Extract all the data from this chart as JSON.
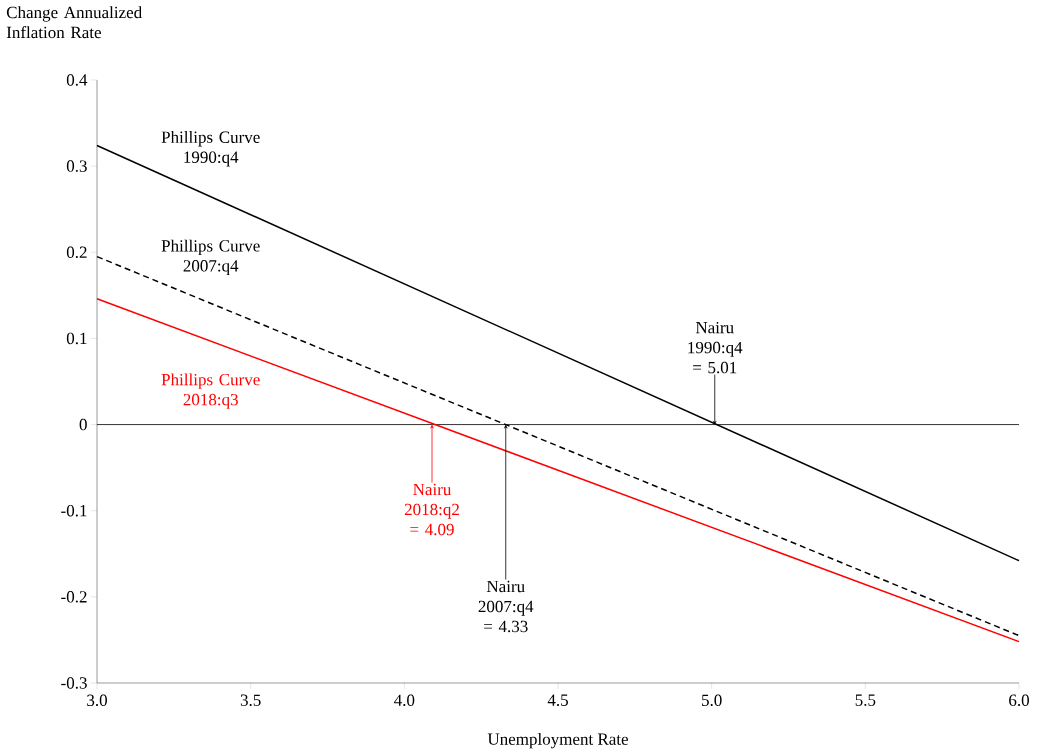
{
  "chart_data": {
    "type": "line",
    "xlabel": "Unemployment Rate",
    "ylabel": "Change Annualized Inflation Rate",
    "xlim": [
      3.0,
      6.0
    ],
    "ylim": [
      -0.3,
      0.4
    ],
    "xticks": [
      {
        "value": 3.0,
        "label": "3.0"
      },
      {
        "value": 3.5,
        "label": "3.5"
      },
      {
        "value": 4.0,
        "label": "4.0"
      },
      {
        "value": 4.5,
        "label": "4.5"
      },
      {
        "value": 5.0,
        "label": "5.0"
      },
      {
        "value": 5.5,
        "label": "5.5"
      },
      {
        "value": 6.0,
        "label": "6.0"
      }
    ],
    "yticks": [
      -0.3,
      -0.2,
      -0.1,
      0,
      0.1,
      0.2,
      0.3,
      0.4
    ],
    "x": [
      3.0,
      6.0
    ],
    "series": [
      {
        "name": "Phillips Curve 1990:q4",
        "color": "#000000",
        "values": [
          0.324,
          -0.158
        ],
        "line_style": "solid"
      },
      {
        "name": "Phillips Curve 2007:q4",
        "color": "#000000",
        "values": [
          0.195,
          -0.245
        ],
        "line_style": "dashed"
      },
      {
        "name": "Phillips Curve 2018:q3",
        "color": "#ff0000",
        "values": [
          0.146,
          -0.252
        ],
        "line_style": "solid"
      }
    ],
    "ref_lines": [
      {
        "axis": "y",
        "value": 0
      }
    ],
    "annotations": [
      {
        "text": "Nairu 1990:q4 = 5.01",
        "x": 5.01,
        "y": 0
      },
      {
        "text": "Nairu 2018:q2 = 4.09",
        "x": 4.09,
        "y": 0
      },
      {
        "text": "Nairu 2007:q4 = 4.33",
        "x": 4.33,
        "y": 0
      }
    ]
  }
}
